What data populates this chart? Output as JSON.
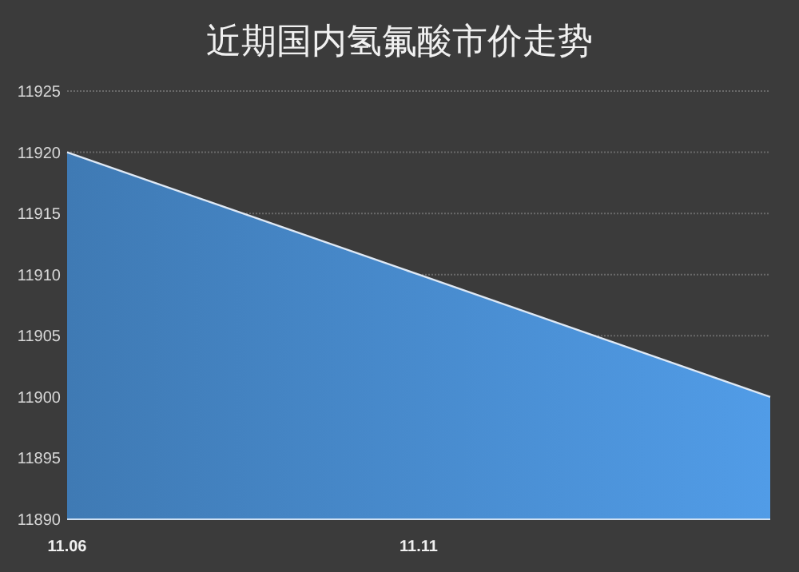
{
  "chart_data": {
    "type": "area",
    "title": "近期国内氢氟酸市价走势",
    "categories": [
      "11.06",
      "11.11",
      null
    ],
    "series": [
      {
        "color": "#4a8fd3",
        "values": [
          11920,
          11910,
          11900
        ]
      }
    ],
    "ylim": [
      11890,
      11925
    ],
    "yticks": [
      11890,
      11895,
      11900,
      11905,
      11910,
      11915,
      11920,
      11925
    ],
    "grid": "y"
  }
}
